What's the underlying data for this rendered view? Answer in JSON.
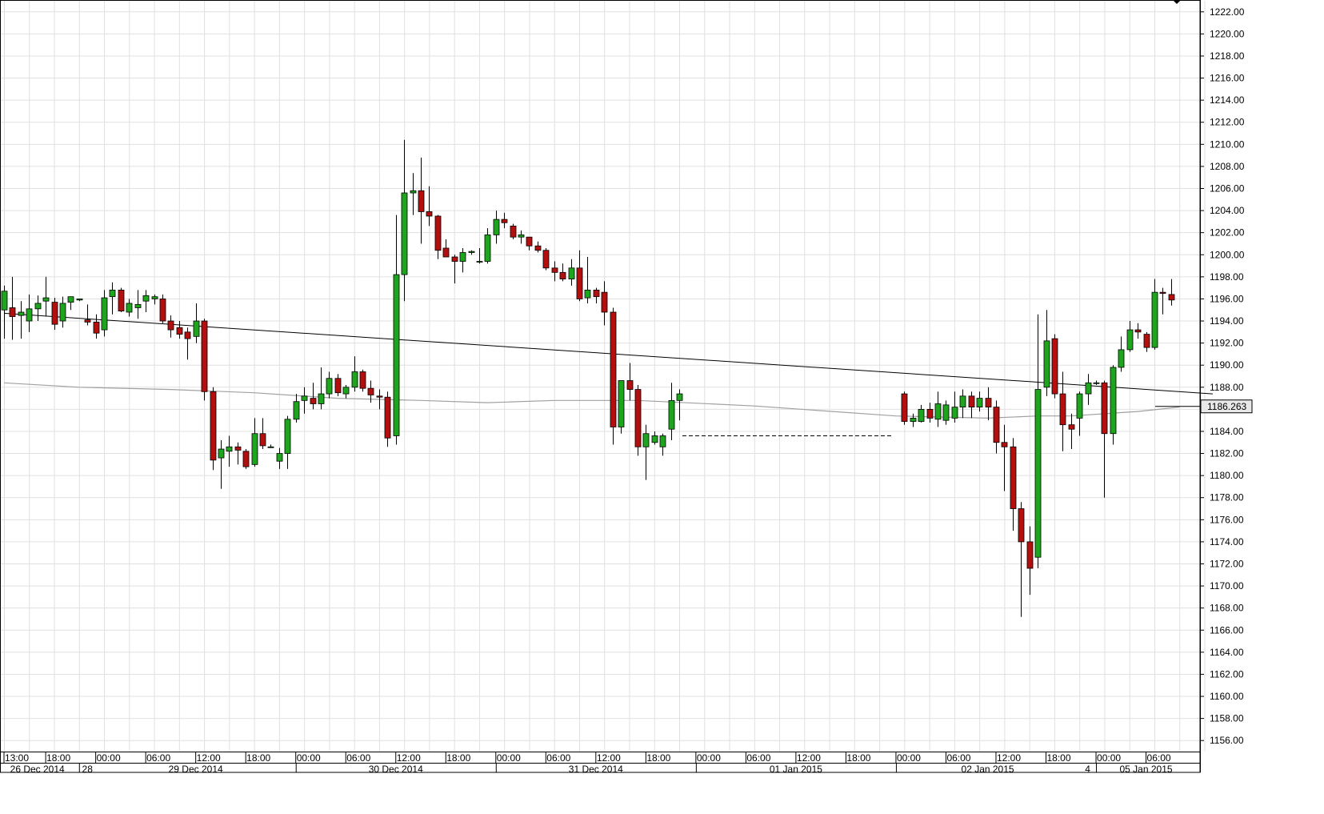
{
  "chart_data": {
    "type": "candlestick",
    "y_axis": {
      "min": 1155.0,
      "max": 1223.0,
      "tick_labels": [
        "1222.00",
        "1220.00",
        "1218.00",
        "1216.00",
        "1214.00",
        "1212.00",
        "1210.00",
        "1208.00",
        "1206.00",
        "1204.00",
        "1202.00",
        "1200.00",
        "1198.00",
        "1196.00",
        "1194.00",
        "1192.00",
        "1190.00",
        "1188.00",
        "1186.00",
        "1184.00",
        "1182.00",
        "1180.00",
        "1178.00",
        "1176.00",
        "1174.00",
        "1172.00",
        "1170.00",
        "1168.00",
        "1166.00",
        "1164.00",
        "1162.00",
        "1160.00",
        "1158.00",
        "1156.00"
      ]
    },
    "x_axis": {
      "time_labels": [
        {
          "text": "13:00",
          "bar": 0
        },
        {
          "text": "18:00",
          "bar": 5
        },
        {
          "text": "00:00",
          "bar": 11
        },
        {
          "text": "06:00",
          "bar": 17
        },
        {
          "text": "12:00",
          "bar": 23
        },
        {
          "text": "18:00",
          "bar": 29
        },
        {
          "text": "00:00",
          "bar": 35
        },
        {
          "text": "06:00",
          "bar": 41
        },
        {
          "text": "12:00",
          "bar": 47
        },
        {
          "text": "18:00",
          "bar": 53
        },
        {
          "text": "00:00",
          "bar": 59
        },
        {
          "text": "06:00",
          "bar": 65
        },
        {
          "text": "12:00",
          "bar": 71
        },
        {
          "text": "18:00",
          "bar": 77
        },
        {
          "text": "00:00",
          "bar": 83
        },
        {
          "text": "06:00",
          "bar": 89
        },
        {
          "text": "12:00",
          "bar": 95
        },
        {
          "text": "18:00",
          "bar": 101
        },
        {
          "text": "00:00",
          "bar": 107
        },
        {
          "text": "06:00",
          "bar": 113
        },
        {
          "text": "12:00",
          "bar": 119
        },
        {
          "text": "18:00",
          "bar": 125
        },
        {
          "text": "00:00",
          "bar": 131
        },
        {
          "text": "06:00",
          "bar": 137
        }
      ],
      "date_labels": [
        {
          "text": "26 Dec 2014",
          "bar": 4
        },
        {
          "text": "28",
          "bar": 10
        },
        {
          "text": "29 Dec 2014",
          "bar": 23
        },
        {
          "text": "30 Dec 2014",
          "bar": 47
        },
        {
          "text": "31 Dec 2014",
          "bar": 71
        },
        {
          "text": "01 Jan 2015",
          "bar": 95
        },
        {
          "text": "02 Jan 2015",
          "bar": 118
        },
        {
          "text": "4",
          "bar": 130
        },
        {
          "text": "05 Jan 2015",
          "bar": 137
        }
      ]
    },
    "candles": [
      {
        "o": 1195.0,
        "h": 1197.2,
        "l": 1192.4,
        "c": 1196.7
      },
      {
        "o": 1195.2,
        "h": 1198.0,
        "l": 1192.3,
        "c": 1194.4
      },
      {
        "o": 1194.5,
        "h": 1195.8,
        "l": 1192.4,
        "c": 1194.8
      },
      {
        "o": 1194.0,
        "h": 1196.4,
        "l": 1193.0,
        "c": 1195.1
      },
      {
        "o": 1195.1,
        "h": 1196.3,
        "l": 1194.0,
        "c": 1195.6
      },
      {
        "o": 1195.8,
        "h": 1198.0,
        "l": 1194.4,
        "c": 1196.1
      },
      {
        "o": 1195.7,
        "h": 1196.1,
        "l": 1193.2,
        "c": 1193.7
      },
      {
        "o": 1194.0,
        "h": 1196.2,
        "l": 1193.4,
        "c": 1195.6
      },
      {
        "o": 1195.7,
        "h": 1196.1,
        "l": 1195.0,
        "c": 1196.2
      },
      {
        "o": 1195.9,
        "h": 1196.0,
        "l": 1195.8,
        "c": 1196.0
      },
      {
        "o": 1194.1,
        "h": 1195.5,
        "l": 1193.6,
        "c": 1193.9
      },
      {
        "o": 1193.9,
        "h": 1194.6,
        "l": 1192.4,
        "c": 1192.9
      },
      {
        "o": 1193.2,
        "h": 1196.8,
        "l": 1192.6,
        "c": 1196.1
      },
      {
        "o": 1196.2,
        "h": 1197.5,
        "l": 1194.6,
        "c": 1196.8
      },
      {
        "o": 1196.8,
        "h": 1197.0,
        "l": 1194.8,
        "c": 1194.9
      },
      {
        "o": 1194.8,
        "h": 1196.0,
        "l": 1194.4,
        "c": 1195.6
      },
      {
        "o": 1195.2,
        "h": 1196.8,
        "l": 1194.2,
        "c": 1195.5
      },
      {
        "o": 1195.8,
        "h": 1196.8,
        "l": 1194.8,
        "c": 1196.3
      },
      {
        "o": 1196.0,
        "h": 1196.4,
        "l": 1195.5,
        "c": 1196.2
      },
      {
        "o": 1196.0,
        "h": 1196.4,
        "l": 1193.8,
        "c": 1194.0
      },
      {
        "o": 1194.0,
        "h": 1194.5,
        "l": 1192.5,
        "c": 1193.2
      },
      {
        "o": 1193.4,
        "h": 1194.0,
        "l": 1192.4,
        "c": 1192.8
      },
      {
        "o": 1193.0,
        "h": 1193.4,
        "l": 1190.5,
        "c": 1192.4
      },
      {
        "o": 1192.6,
        "h": 1195.6,
        "l": 1192.0,
        "c": 1194.0
      },
      {
        "o": 1194.0,
        "h": 1194.2,
        "l": 1186.8,
        "c": 1187.6
      },
      {
        "o": 1187.6,
        "h": 1188.0,
        "l": 1180.5,
        "c": 1181.4
      },
      {
        "o": 1181.6,
        "h": 1183.2,
        "l": 1178.8,
        "c": 1182.4
      },
      {
        "o": 1182.2,
        "h": 1183.6,
        "l": 1180.8,
        "c": 1182.6
      },
      {
        "o": 1182.6,
        "h": 1183.0,
        "l": 1181.0,
        "c": 1182.3
      },
      {
        "o": 1182.2,
        "h": 1182.4,
        "l": 1180.6,
        "c": 1180.8
      },
      {
        "o": 1181.0,
        "h": 1185.2,
        "l": 1180.8,
        "c": 1183.8
      },
      {
        "o": 1183.8,
        "h": 1185.2,
        "l": 1182.4,
        "c": 1182.7
      },
      {
        "o": 1182.6,
        "h": 1182.8,
        "l": 1182.5,
        "c": 1182.6
      },
      {
        "o": 1181.3,
        "h": 1182.5,
        "l": 1180.6,
        "c": 1182.0
      },
      {
        "o": 1182.0,
        "h": 1185.4,
        "l": 1180.6,
        "c": 1185.1
      },
      {
        "o": 1185.1,
        "h": 1187.4,
        "l": 1184.8,
        "c": 1186.7
      },
      {
        "o": 1186.8,
        "h": 1188.0,
        "l": 1185.6,
        "c": 1187.2
      },
      {
        "o": 1187.0,
        "h": 1188.4,
        "l": 1186.0,
        "c": 1186.5
      },
      {
        "o": 1186.5,
        "h": 1189.8,
        "l": 1186.0,
        "c": 1187.4
      },
      {
        "o": 1187.4,
        "h": 1189.4,
        "l": 1187.0,
        "c": 1188.8
      },
      {
        "o": 1188.8,
        "h": 1189.2,
        "l": 1187.2,
        "c": 1187.5
      },
      {
        "o": 1187.4,
        "h": 1188.2,
        "l": 1187.0,
        "c": 1188.0
      },
      {
        "o": 1188.0,
        "h": 1190.8,
        "l": 1187.6,
        "c": 1189.4
      },
      {
        "o": 1189.4,
        "h": 1189.6,
        "l": 1187.6,
        "c": 1187.9
      },
      {
        "o": 1187.9,
        "h": 1188.6,
        "l": 1186.6,
        "c": 1187.3
      },
      {
        "o": 1187.2,
        "h": 1187.8,
        "l": 1186.0,
        "c": 1187.1
      },
      {
        "o": 1187.1,
        "h": 1187.6,
        "l": 1182.6,
        "c": 1183.4
      },
      {
        "o": 1183.6,
        "h": 1203.6,
        "l": 1182.8,
        "c": 1198.2
      },
      {
        "o": 1198.2,
        "h": 1210.4,
        "l": 1195.8,
        "c": 1205.6
      },
      {
        "o": 1205.6,
        "h": 1207.4,
        "l": 1203.6,
        "c": 1205.8
      },
      {
        "o": 1205.8,
        "h": 1208.8,
        "l": 1201.0,
        "c": 1203.9
      },
      {
        "o": 1203.9,
        "h": 1206.2,
        "l": 1202.6,
        "c": 1203.5
      },
      {
        "o": 1203.5,
        "h": 1203.6,
        "l": 1199.6,
        "c": 1200.4
      },
      {
        "o": 1200.6,
        "h": 1201.4,
        "l": 1199.8,
        "c": 1199.8
      },
      {
        "o": 1199.8,
        "h": 1200.0,
        "l": 1197.4,
        "c": 1199.4
      },
      {
        "o": 1199.4,
        "h": 1200.6,
        "l": 1198.4,
        "c": 1200.2
      },
      {
        "o": 1200.2,
        "h": 1200.4,
        "l": 1200.0,
        "c": 1200.3
      },
      {
        "o": 1199.4,
        "h": 1200.6,
        "l": 1199.2,
        "c": 1199.4
      },
      {
        "o": 1199.4,
        "h": 1202.4,
        "l": 1199.2,
        "c": 1201.8
      },
      {
        "o": 1201.8,
        "h": 1204.0,
        "l": 1201.0,
        "c": 1203.2
      },
      {
        "o": 1203.2,
        "h": 1203.8,
        "l": 1202.4,
        "c": 1202.9
      },
      {
        "o": 1202.6,
        "h": 1202.8,
        "l": 1201.4,
        "c": 1201.6
      },
      {
        "o": 1201.6,
        "h": 1202.2,
        "l": 1201.0,
        "c": 1201.8
      },
      {
        "o": 1201.6,
        "h": 1201.6,
        "l": 1200.4,
        "c": 1200.8
      },
      {
        "o": 1200.8,
        "h": 1201.2,
        "l": 1200.2,
        "c": 1200.4
      },
      {
        "o": 1200.4,
        "h": 1200.6,
        "l": 1198.6,
        "c": 1198.8
      },
      {
        "o": 1198.8,
        "h": 1199.4,
        "l": 1197.6,
        "c": 1198.4
      },
      {
        "o": 1198.4,
        "h": 1199.2,
        "l": 1197.6,
        "c": 1197.8
      },
      {
        "o": 1197.8,
        "h": 1199.6,
        "l": 1197.2,
        "c": 1198.8
      },
      {
        "o": 1198.8,
        "h": 1200.4,
        "l": 1195.8,
        "c": 1196.0
      },
      {
        "o": 1196.1,
        "h": 1199.8,
        "l": 1195.6,
        "c": 1196.8
      },
      {
        "o": 1196.8,
        "h": 1197.0,
        "l": 1195.6,
        "c": 1196.2
      },
      {
        "o": 1196.6,
        "h": 1197.6,
        "l": 1193.6,
        "c": 1194.8
      },
      {
        "o": 1194.8,
        "h": 1195.2,
        "l": 1182.8,
        "c": 1184.4
      },
      {
        "o": 1184.4,
        "h": 1188.4,
        "l": 1183.8,
        "c": 1188.6
      },
      {
        "o": 1188.6,
        "h": 1190.2,
        "l": 1186.8,
        "c": 1187.8
      },
      {
        "o": 1187.8,
        "h": 1188.2,
        "l": 1181.8,
        "c": 1182.6
      },
      {
        "o": 1182.6,
        "h": 1184.6,
        "l": 1179.6,
        "c": 1183.8
      },
      {
        "o": 1183.0,
        "h": 1184.0,
        "l": 1182.8,
        "c": 1183.6
      },
      {
        "o": 1182.6,
        "h": 1183.8,
        "l": 1181.8,
        "c": 1183.6
      },
      {
        "o": 1184.2,
        "h": 1188.4,
        "l": 1183.2,
        "c": 1186.8
      },
      {
        "o": 1186.8,
        "h": 1187.8,
        "l": 1185.0,
        "c": 1187.4
      },
      {
        "o": 1187.4,
        "h": 1187.6,
        "l": 1184.6,
        "c": 1184.9
      },
      {
        "o": 1184.9,
        "h": 1185.6,
        "l": 1184.4,
        "c": 1185.2
      },
      {
        "o": 1184.9,
        "h": 1186.4,
        "l": 1184.8,
        "c": 1186.0
      },
      {
        "o": 1186.0,
        "h": 1186.6,
        "l": 1184.8,
        "c": 1185.2
      },
      {
        "o": 1185.1,
        "h": 1187.6,
        "l": 1184.4,
        "c": 1186.5
      },
      {
        "o": 1185.0,
        "h": 1186.8,
        "l": 1184.6,
        "c": 1186.4
      },
      {
        "o": 1185.2,
        "h": 1187.6,
        "l": 1184.8,
        "c": 1186.2
      },
      {
        "o": 1186.2,
        "h": 1187.8,
        "l": 1185.2,
        "c": 1187.2
      },
      {
        "o": 1187.2,
        "h": 1187.6,
        "l": 1185.2,
        "c": 1186.2
      },
      {
        "o": 1186.2,
        "h": 1187.6,
        "l": 1185.8,
        "c": 1187.0
      },
      {
        "o": 1187.0,
        "h": 1188.0,
        "l": 1185.0,
        "c": 1186.2
      },
      {
        "o": 1186.2,
        "h": 1186.8,
        "l": 1182.0,
        "c": 1183.0
      },
      {
        "o": 1183.0,
        "h": 1184.6,
        "l": 1178.6,
        "c": 1182.6
      },
      {
        "o": 1182.6,
        "h": 1183.4,
        "l": 1175.0,
        "c": 1177.0
      },
      {
        "o": 1177.0,
        "h": 1177.6,
        "l": 1167.2,
        "c": 1174.0
      },
      {
        "o": 1174.0,
        "h": 1175.4,
        "l": 1169.2,
        "c": 1171.6
      },
      {
        "o": 1172.6,
        "h": 1194.6,
        "l": 1171.6,
        "c": 1187.8
      },
      {
        "o": 1188.0,
        "h": 1195.0,
        "l": 1187.2,
        "c": 1192.2
      },
      {
        "o": 1192.4,
        "h": 1192.8,
        "l": 1187.0,
        "c": 1187.4
      },
      {
        "o": 1187.4,
        "h": 1189.4,
        "l": 1182.2,
        "c": 1184.6
      },
      {
        "o": 1184.6,
        "h": 1185.6,
        "l": 1182.4,
        "c": 1184.2
      },
      {
        "o": 1185.2,
        "h": 1187.6,
        "l": 1183.6,
        "c": 1187.4
      },
      {
        "o": 1187.4,
        "h": 1189.2,
        "l": 1186.4,
        "c": 1188.4
      },
      {
        "o": 1188.4,
        "h": 1188.6,
        "l": 1188.2,
        "c": 1188.4
      },
      {
        "o": 1188.4,
        "h": 1188.6,
        "l": 1178.0,
        "c": 1183.8
      },
      {
        "o": 1183.8,
        "h": 1190.0,
        "l": 1182.8,
        "c": 1189.8
      },
      {
        "o": 1189.8,
        "h": 1192.6,
        "l": 1189.4,
        "c": 1191.4
      },
      {
        "o": 1191.4,
        "h": 1194.0,
        "l": 1191.2,
        "c": 1193.2
      },
      {
        "o": 1193.2,
        "h": 1193.8,
        "l": 1192.4,
        "c": 1193.0
      },
      {
        "o": 1192.8,
        "h": 1193.0,
        "l": 1191.2,
        "c": 1191.6
      },
      {
        "o": 1191.6,
        "h": 1197.8,
        "l": 1191.4,
        "c": 1196.6
      },
      {
        "o": 1196.6,
        "h": 1197.0,
        "l": 1194.6,
        "c": 1196.5
      },
      {
        "o": 1196.4,
        "h": 1197.8,
        "l": 1195.4,
        "c": 1195.9
      }
    ],
    "bar_index_gap": {
      "after_bar": 81,
      "skip": 26
    },
    "trend_line": {
      "from_bar": 0,
      "from_value": 1194.7,
      "to_bar": 145,
      "to_value": 1187.4
    },
    "dashed_line": {
      "from_bar": 81,
      "to_bar": 107,
      "value": 1183.6
    },
    "moving_average": [
      {
        "bar": 0,
        "value": 1188.4
      },
      {
        "bar": 9,
        "value": 1188.0
      },
      {
        "bar": 20,
        "value": 1187.8
      },
      {
        "bar": 30,
        "value": 1187.5
      },
      {
        "bar": 40,
        "value": 1187.0
      },
      {
        "bar": 50,
        "value": 1186.8
      },
      {
        "bar": 58,
        "value": 1186.6
      },
      {
        "bar": 66,
        "value": 1186.8
      },
      {
        "bar": 76,
        "value": 1186.8
      },
      {
        "bar": 90,
        "value": 1186.3
      },
      {
        "bar": 107,
        "value": 1185.4
      },
      {
        "bar": 118,
        "value": 1185.2
      },
      {
        "bar": 124,
        "value": 1185.4
      },
      {
        "bar": 128,
        "value": 1185.4
      },
      {
        "bar": 136,
        "value": 1185.8
      },
      {
        "bar": 141,
        "value": 1186.2
      }
    ],
    "last_price": {
      "value": 1186.263,
      "label": "1186.263"
    },
    "colors": {
      "up": "#1ea51e",
      "down": "#b30f0f",
      "wick": "#000000",
      "grid": "#e0e0e0",
      "moving_average": "#a0a0a0",
      "trend_line": "#000000"
    }
  }
}
